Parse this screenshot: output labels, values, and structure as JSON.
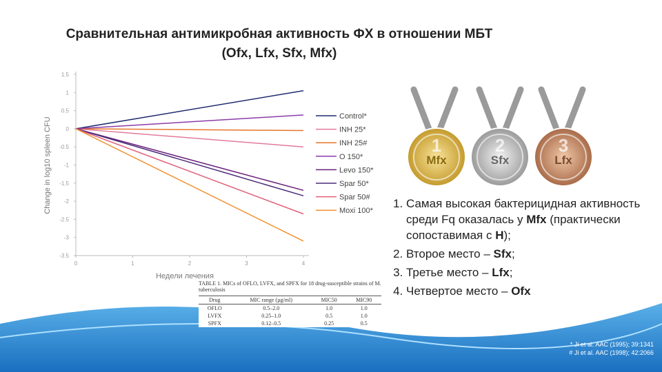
{
  "slide": {
    "title": [
      "Сравнительная антимикробная активность ФХ в отношении МБТ",
      "(Ofx, Lfx, Sfx, Mfx)"
    ],
    "medals": [
      {
        "rank": "1",
        "label": "Mfx"
      },
      {
        "rank": "2",
        "label": "Sfx"
      },
      {
        "rank": "3",
        "label": "Lfx"
      }
    ],
    "list": [
      [
        "Самая высокая бактерицидная активность среди Fq оказалась у ",
        "Mfx",
        " (практически сопоставимая с ",
        "H",
        ");"
      ],
      [
        "Второе место – ",
        "Sfx",
        ";"
      ],
      [
        "Третье место – ",
        "Lfx",
        ";"
      ],
      [
        "Четвертое место – ",
        "Ofx"
      ]
    ],
    "table": {
      "caption": "TABLE 1. MICs of OFLO, LVFX, and SPFX for 18 drug-susceptible strains of M. tuberculosis",
      "header": [
        "Drug",
        "MIC range (µg/ml)",
        "MIC50",
        "MIC90"
      ],
      "rows": [
        [
          "OFLO",
          "0.5–2.0",
          "1.0",
          "1.0"
        ],
        [
          "LVFX",
          "0.25–1.0",
          "0.5",
          "1.0"
        ],
        [
          "SPFX",
          "0.12–0.5",
          "0.25",
          "0.5"
        ]
      ]
    },
    "footnotes": [
      "* Ji et al. AAC (1995); 39:1341",
      "# Ji et al. AAC (1998); 42:2066"
    ]
  },
  "chart_data": {
    "type": "line",
    "x_label": "Недели лечения",
    "y_label": "Change in log10 spleen CFU",
    "x": [
      0,
      4
    ],
    "xlim": [
      0,
      4
    ],
    "xticks": [
      0,
      1,
      2,
      3,
      4
    ],
    "ylim": [
      -3.5,
      1.5
    ],
    "yticks": [
      1.5,
      1,
      0.5,
      0,
      -0.5,
      -1,
      -1.5,
      -2,
      -2.5,
      -3,
      -3.5
    ],
    "legend": "right",
    "series": [
      {
        "name": "Control*",
        "color": "#1f2a6e",
        "values": [
          0,
          1.05
        ]
      },
      {
        "name": "INH 25*",
        "color": "#e27a9a",
        "values": [
          0,
          -0.5
        ]
      },
      {
        "name": "INH 25#",
        "color": "#e8742a",
        "values": [
          0,
          -0.05
        ]
      },
      {
        "name": "O 150*",
        "color": "#8a3aa8",
        "values": [
          0,
          0.38
        ]
      },
      {
        "name": "Levo 150*",
        "color": "#6a1f7a",
        "values": [
          0,
          -1.7
        ]
      },
      {
        "name": "Spar 50*",
        "color": "#4a2a7a",
        "values": [
          0,
          -1.85
        ]
      },
      {
        "name": "Spar 50#",
        "color": "#e0607a",
        "values": [
          0,
          -2.35
        ]
      },
      {
        "name": "Moxi 100*",
        "color": "#f09030",
        "values": [
          0,
          -3.1
        ]
      }
    ]
  }
}
